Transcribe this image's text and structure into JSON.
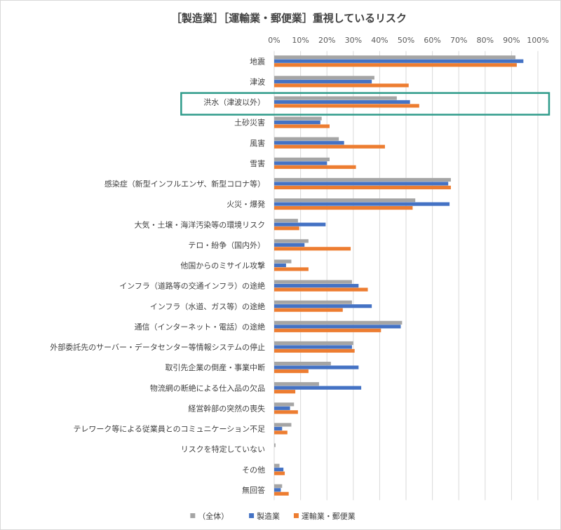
{
  "chart_data": {
    "type": "bar",
    "orientation": "horizontal",
    "title": "［製造業］［運輸業・郵便業］重視しているリスク",
    "x_ticks": [
      "0%",
      "10%",
      "20%",
      "30%",
      "40%",
      "50%",
      "60%",
      "70%",
      "80%",
      "90%",
      "100%"
    ],
    "xlim": [
      0,
      100
    ],
    "grid": true,
    "legend_position": "bottom",
    "highlighted_category": "洪水（津波以外）",
    "categories": [
      "地震",
      "津波",
      "洪水（津波以外）",
      "土砂災害",
      "風害",
      "雪害",
      "感染症（新型インフルエンザ、新型コロナ等）",
      "火災・爆発",
      "大気・土壌・海洋汚染等の環境リスク",
      "テロ・紛争（国内外）",
      "他国からのミサイル攻撃",
      "インフラ（道路等の交通インフラ）の途絶",
      "インフラ（水道、ガス等）の途絶",
      "通信（インターネット・電話）の途絶",
      "外部委託先のサーバー・データセンター等情報システムの停止",
      "取引先企業の倒産・事業中断",
      "物流網の断絶による仕入品の欠品",
      "経営幹部の突然の喪失",
      "テレワーク等による従業員とのコミュニケーション不足",
      "リスクを特定していない",
      "その他",
      "無回答"
    ],
    "series": [
      {
        "name": "（全体）",
        "color": "#a5a5a5",
        "values": [
          91.5,
          38,
          46.5,
          18,
          24.5,
          21,
          67,
          53.5,
          9,
          13,
          6.5,
          29.5,
          29.5,
          48.5,
          30,
          21.5,
          17,
          7.5,
          6.5,
          0.5,
          2,
          3
        ]
      },
      {
        "name": "製造業",
        "color": "#4472c4",
        "values": [
          94.5,
          37,
          51.5,
          17.5,
          26.5,
          20,
          66,
          66.5,
          19.5,
          11.5,
          4.5,
          32,
          37,
          48,
          29.5,
          32,
          33,
          6,
          3,
          0,
          3.5,
          2.5
        ]
      },
      {
        "name": "運輸業・郵便業",
        "color": "#ed7d31",
        "values": [
          92,
          51,
          55,
          21,
          42,
          31,
          67,
          52.5,
          9.5,
          29,
          13,
          35.5,
          26,
          40.5,
          30.5,
          13,
          8,
          9,
          5,
          0,
          4,
          5.5
        ]
      }
    ]
  },
  "colors": {
    "highlight_border": "#2e9b8a",
    "grid": "#d9d9d9"
  }
}
